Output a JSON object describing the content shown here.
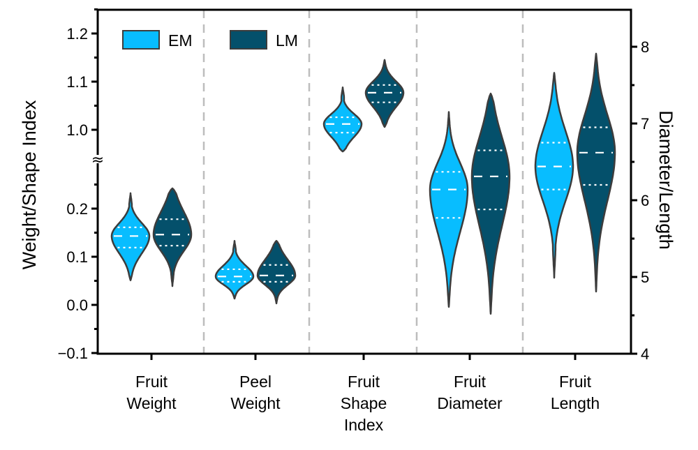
{
  "chart_data": {
    "type": "violin",
    "categories": [
      [
        "Fruit",
        "Weight"
      ],
      [
        "Peel",
        "Weight"
      ],
      [
        "Fruit",
        "Shape",
        "Index"
      ],
      [
        "Fruit",
        "Diameter"
      ],
      [
        "Fruit",
        "Length"
      ]
    ],
    "category_axis": [
      "left",
      "left",
      "left",
      "right",
      "right"
    ],
    "left_axis": {
      "label": "Weight/Shape Index",
      "segments": [
        [
          -0.1,
          0.3
        ],
        [
          0.95,
          1.25
        ]
      ],
      "ticks": [
        "-0.1",
        "0.0",
        "0.1",
        "0.2",
        "1.0",
        "1.1",
        "1.2"
      ],
      "axis_break": "≈"
    },
    "right_axis": {
      "label": "Diameter/Length",
      "range": [
        4,
        8.48
      ],
      "ticks": [
        "4",
        "5",
        "6",
        "7",
        "8"
      ]
    },
    "legend": {
      "placement": "top-left",
      "entries": [
        "EM",
        "LM"
      ]
    },
    "colors": {
      "EM": "#08BDFF",
      "LM": "#04506B",
      "outline": "#3C3C3C",
      "divider": "#BDBDBD"
    },
    "series": [
      {
        "name": "EM",
        "stats": [
          {
            "min": 0.051,
            "q1": 0.119,
            "median": 0.143,
            "q3": 0.161,
            "max": 0.232
          },
          {
            "min": 0.013,
            "q1": 0.048,
            "median": 0.059,
            "q3": 0.074,
            "max": 0.133
          },
          {
            "min": 0.955,
            "q1": 0.994,
            "median": 1.012,
            "q3": 1.026,
            "max": 1.088
          },
          {
            "min": 4.61,
            "q1": 5.77,
            "median": 6.14,
            "q3": 6.37,
            "max": 7.15
          },
          {
            "min": 4.99,
            "q1": 6.14,
            "median": 6.44,
            "q3": 6.75,
            "max": 7.66
          }
        ]
      },
      {
        "name": "LM",
        "stats": [
          {
            "min": 0.039,
            "q1": 0.123,
            "median": 0.146,
            "q3": 0.178,
            "max": 0.242
          },
          {
            "min": 0.003,
            "q1": 0.048,
            "median": 0.061,
            "q3": 0.083,
            "max": 0.133
          },
          {
            "min": 1.006,
            "q1": 1.057,
            "median": 1.077,
            "q3": 1.093,
            "max": 1.145
          },
          {
            "min": 4.52,
            "q1": 5.88,
            "median": 6.31,
            "q3": 6.65,
            "max": 7.39
          },
          {
            "min": 4.81,
            "q1": 6.2,
            "median": 6.62,
            "q3": 6.95,
            "max": 7.91
          }
        ]
      }
    ],
    "grid": false,
    "dividers": "dashed vertical between categories"
  }
}
